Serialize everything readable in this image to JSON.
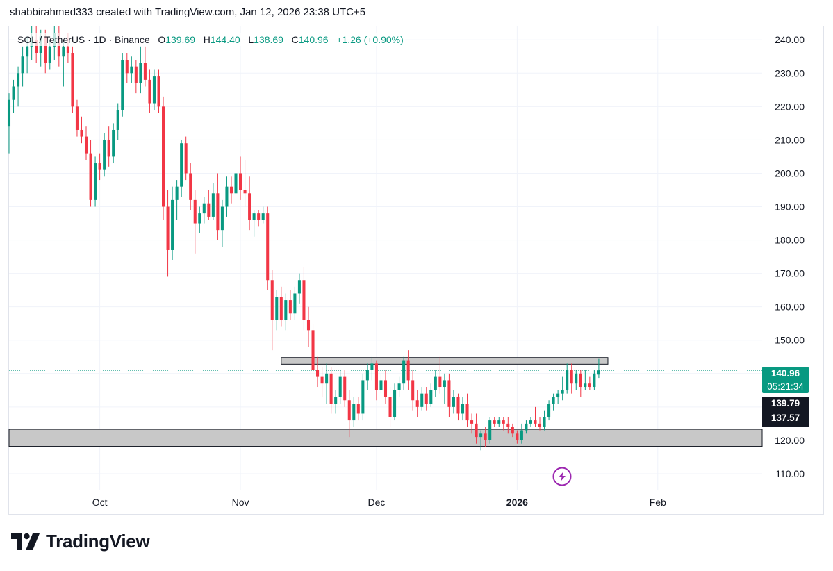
{
  "header": {
    "credit": "shabbirahmed333 created with TradingView.com, Jan 12, 2026 23:38 UTC+5"
  },
  "ticker": {
    "symbol": "SOL / TetherUS · 1D · Binance",
    "o_label": "O",
    "o_value": "139.69",
    "h_label": "H",
    "h_value": "144.40",
    "l_label": "L",
    "l_value": "138.69",
    "c_label": "C",
    "c_value": "140.96",
    "change": "+1.26 (+0.90%)"
  },
  "price_tags": {
    "last_price": "140.96",
    "countdown": "05:21:34",
    "level_1": "139.79",
    "level_2": "137.57"
  },
  "footer": {
    "brand": "TradingView",
    "logo_icon": "tradingview-logo-icon"
  },
  "colors": {
    "up": "#089981",
    "down": "#f23645",
    "zone_fill": "#c8c8c8",
    "zone_border": "#131722",
    "grid": "#f0f3fa",
    "accent_purple": "#9c27b0"
  },
  "chart_data": {
    "type": "candlestick",
    "title": "SOL / TetherUS · 1D · Binance",
    "x_ticks": [
      "Oct",
      "Nov",
      "Dec",
      "2026",
      "Feb"
    ],
    "y_ticks": [
      "110.00",
      "120.00",
      "130.00",
      "140.00",
      "150.00",
      "160.00",
      "170.00",
      "180.00",
      "190.00",
      "200.00",
      "210.00",
      "220.00",
      "230.00",
      "240.00"
    ],
    "ylim": [
      105,
      244
    ],
    "xlim": [
      "2025-09-11",
      "2026-02-24"
    ],
    "grid": true,
    "zones": [
      {
        "from": 142.8,
        "to": 144.8,
        "x_start": "2025-11-10",
        "x_end": "2026-01-21"
      },
      {
        "from": 118.2,
        "to": 123.3,
        "x_start": "2025-09-11",
        "x_end": "2026-02-24"
      }
    ],
    "last_price_line": 140.96,
    "candles": [
      {
        "date": "2025-09-11",
        "o": 214,
        "h": 224,
        "l": 206,
        "c": 222
      },
      {
        "date": "2025-09-12",
        "o": 222,
        "h": 228,
        "l": 218,
        "c": 226
      },
      {
        "date": "2025-09-13",
        "o": 226,
        "h": 232,
        "l": 220,
        "c": 230
      },
      {
        "date": "2025-09-14",
        "o": 230,
        "h": 238,
        "l": 226,
        "c": 235
      },
      {
        "date": "2025-09-15",
        "o": 235,
        "h": 241,
        "l": 230,
        "c": 238
      },
      {
        "date": "2025-09-16",
        "o": 238,
        "h": 244,
        "l": 234,
        "c": 240
      },
      {
        "date": "2025-09-17",
        "o": 240,
        "h": 244,
        "l": 233,
        "c": 236
      },
      {
        "date": "2025-09-18",
        "o": 236,
        "h": 243,
        "l": 232,
        "c": 241
      },
      {
        "date": "2025-09-19",
        "o": 241,
        "h": 243,
        "l": 230,
        "c": 233
      },
      {
        "date": "2025-09-20",
        "o": 233,
        "h": 240,
        "l": 231,
        "c": 238
      },
      {
        "date": "2025-09-21",
        "o": 238,
        "h": 244,
        "l": 234,
        "c": 242
      },
      {
        "date": "2025-09-22",
        "o": 242,
        "h": 244,
        "l": 232,
        "c": 235
      },
      {
        "date": "2025-09-23",
        "o": 235,
        "h": 240,
        "l": 226,
        "c": 238
      },
      {
        "date": "2025-09-24",
        "o": 238,
        "h": 242,
        "l": 233,
        "c": 236
      },
      {
        "date": "2025-09-25",
        "o": 236,
        "h": 238,
        "l": 218,
        "c": 220
      },
      {
        "date": "2025-09-26",
        "o": 220,
        "h": 222,
        "l": 211,
        "c": 213
      },
      {
        "date": "2025-09-27",
        "o": 213,
        "h": 217,
        "l": 209,
        "c": 211
      },
      {
        "date": "2025-09-28",
        "o": 211,
        "h": 214,
        "l": 204,
        "c": 206
      },
      {
        "date": "2025-09-29",
        "o": 206,
        "h": 210,
        "l": 190,
        "c": 192
      },
      {
        "date": "2025-09-30",
        "o": 192,
        "h": 205,
        "l": 190,
        "c": 203
      },
      {
        "date": "2025-10-01",
        "o": 203,
        "h": 206,
        "l": 198,
        "c": 201
      },
      {
        "date": "2025-10-02",
        "o": 201,
        "h": 212,
        "l": 199,
        "c": 210
      },
      {
        "date": "2025-10-03",
        "o": 210,
        "h": 214,
        "l": 202,
        "c": 205
      },
      {
        "date": "2025-10-04",
        "o": 205,
        "h": 215,
        "l": 203,
        "c": 213
      },
      {
        "date": "2025-10-05",
        "o": 213,
        "h": 221,
        "l": 210,
        "c": 219
      },
      {
        "date": "2025-10-06",
        "o": 219,
        "h": 236,
        "l": 217,
        "c": 234
      },
      {
        "date": "2025-10-07",
        "o": 234,
        "h": 236,
        "l": 227,
        "c": 230
      },
      {
        "date": "2025-10-08",
        "o": 230,
        "h": 235,
        "l": 227,
        "c": 232
      },
      {
        "date": "2025-10-09",
        "o": 232,
        "h": 234,
        "l": 224,
        "c": 227
      },
      {
        "date": "2025-10-10",
        "o": 227,
        "h": 238,
        "l": 224,
        "c": 233
      },
      {
        "date": "2025-10-11",
        "o": 233,
        "h": 238,
        "l": 226,
        "c": 228
      },
      {
        "date": "2025-10-12",
        "o": 228,
        "h": 231,
        "l": 218,
        "c": 221
      },
      {
        "date": "2025-10-13",
        "o": 221,
        "h": 231,
        "l": 219,
        "c": 229
      },
      {
        "date": "2025-10-14",
        "o": 229,
        "h": 231,
        "l": 218,
        "c": 220
      },
      {
        "date": "2025-10-15",
        "o": 220,
        "h": 223,
        "l": 186,
        "c": 190
      },
      {
        "date": "2025-10-16",
        "o": 190,
        "h": 195,
        "l": 169,
        "c": 177
      },
      {
        "date": "2025-10-17",
        "o": 177,
        "h": 196,
        "l": 174,
        "c": 192
      },
      {
        "date": "2025-10-18",
        "o": 192,
        "h": 198,
        "l": 186,
        "c": 196
      },
      {
        "date": "2025-10-19",
        "o": 196,
        "h": 210,
        "l": 193,
        "c": 209
      },
      {
        "date": "2025-10-20",
        "o": 209,
        "h": 211,
        "l": 198,
        "c": 200
      },
      {
        "date": "2025-10-21",
        "o": 200,
        "h": 203,
        "l": 189,
        "c": 192
      },
      {
        "date": "2025-10-22",
        "o": 192,
        "h": 195,
        "l": 176,
        "c": 185
      },
      {
        "date": "2025-10-23",
        "o": 185,
        "h": 190,
        "l": 182,
        "c": 188
      },
      {
        "date": "2025-10-24",
        "o": 188,
        "h": 193,
        "l": 185,
        "c": 191
      },
      {
        "date": "2025-10-25",
        "o": 191,
        "h": 195,
        "l": 186,
        "c": 187
      },
      {
        "date": "2025-10-26",
        "o": 187,
        "h": 197,
        "l": 186,
        "c": 194
      },
      {
        "date": "2025-10-27",
        "o": 194,
        "h": 200,
        "l": 180,
        "c": 183
      },
      {
        "date": "2025-10-28",
        "o": 183,
        "h": 192,
        "l": 178,
        "c": 190
      },
      {
        "date": "2025-10-29",
        "o": 190,
        "h": 199,
        "l": 187,
        "c": 196
      },
      {
        "date": "2025-10-30",
        "o": 196,
        "h": 199,
        "l": 191,
        "c": 194
      },
      {
        "date": "2025-10-31",
        "o": 194,
        "h": 201,
        "l": 192,
        "c": 200
      },
      {
        "date": "2025-11-01",
        "o": 200,
        "h": 205,
        "l": 192,
        "c": 195
      },
      {
        "date": "2025-11-02",
        "o": 195,
        "h": 204,
        "l": 190,
        "c": 194
      },
      {
        "date": "2025-11-03",
        "o": 194,
        "h": 199,
        "l": 183,
        "c": 186
      },
      {
        "date": "2025-11-04",
        "o": 186,
        "h": 189,
        "l": 181,
        "c": 188
      },
      {
        "date": "2025-11-05",
        "o": 188,
        "h": 189,
        "l": 184,
        "c": 186
      },
      {
        "date": "2025-11-06",
        "o": 186,
        "h": 190,
        "l": 185,
        "c": 188
      },
      {
        "date": "2025-11-07",
        "o": 188,
        "h": 190,
        "l": 165,
        "c": 168
      },
      {
        "date": "2025-11-08",
        "o": 168,
        "h": 171,
        "l": 147,
        "c": 156
      },
      {
        "date": "2025-11-09",
        "o": 156,
        "h": 165,
        "l": 153,
        "c": 163
      },
      {
        "date": "2025-11-10",
        "o": 163,
        "h": 166,
        "l": 154,
        "c": 156
      },
      {
        "date": "2025-11-11",
        "o": 156,
        "h": 164,
        "l": 153,
        "c": 162
      },
      {
        "date": "2025-11-12",
        "o": 162,
        "h": 165,
        "l": 156,
        "c": 158
      },
      {
        "date": "2025-11-13",
        "o": 158,
        "h": 166,
        "l": 156,
        "c": 164
      },
      {
        "date": "2025-11-14",
        "o": 164,
        "h": 170,
        "l": 161,
        "c": 168
      },
      {
        "date": "2025-11-15",
        "o": 168,
        "h": 172,
        "l": 153,
        "c": 156
      },
      {
        "date": "2025-11-16",
        "o": 156,
        "h": 160,
        "l": 148,
        "c": 153
      },
      {
        "date": "2025-11-17",
        "o": 153,
        "h": 155,
        "l": 138,
        "c": 141
      },
      {
        "date": "2025-11-18",
        "o": 141,
        "h": 145,
        "l": 136,
        "c": 139
      },
      {
        "date": "2025-11-19",
        "o": 139,
        "h": 142,
        "l": 133,
        "c": 137
      },
      {
        "date": "2025-11-20",
        "o": 137,
        "h": 143,
        "l": 131,
        "c": 140
      },
      {
        "date": "2025-11-21",
        "o": 140,
        "h": 142,
        "l": 128,
        "c": 131
      },
      {
        "date": "2025-11-22",
        "o": 131,
        "h": 135,
        "l": 128,
        "c": 133
      },
      {
        "date": "2025-11-23",
        "o": 133,
        "h": 141,
        "l": 131,
        "c": 139
      },
      {
        "date": "2025-11-24",
        "o": 139,
        "h": 141,
        "l": 130,
        "c": 132
      },
      {
        "date": "2025-11-25",
        "o": 132,
        "h": 135,
        "l": 121,
        "c": 126
      },
      {
        "date": "2025-11-26",
        "o": 126,
        "h": 133,
        "l": 124,
        "c": 131
      },
      {
        "date": "2025-11-27",
        "o": 131,
        "h": 133,
        "l": 126,
        "c": 128
      },
      {
        "date": "2025-11-28",
        "o": 128,
        "h": 140,
        "l": 126,
        "c": 138
      },
      {
        "date": "2025-11-29",
        "o": 138,
        "h": 143,
        "l": 135,
        "c": 141
      },
      {
        "date": "2025-11-30",
        "o": 141,
        "h": 145,
        "l": 138,
        "c": 143
      },
      {
        "date": "2025-12-01",
        "o": 143,
        "h": 144,
        "l": 132,
        "c": 135
      },
      {
        "date": "2025-12-02",
        "o": 135,
        "h": 140,
        "l": 134,
        "c": 138
      },
      {
        "date": "2025-12-03",
        "o": 138,
        "h": 141,
        "l": 131,
        "c": 133
      },
      {
        "date": "2025-12-04",
        "o": 133,
        "h": 136,
        "l": 124,
        "c": 127
      },
      {
        "date": "2025-12-05",
        "o": 127,
        "h": 137,
        "l": 126,
        "c": 135
      },
      {
        "date": "2025-12-06",
        "o": 135,
        "h": 139,
        "l": 133,
        "c": 137
      },
      {
        "date": "2025-12-07",
        "o": 137,
        "h": 145,
        "l": 135,
        "c": 144
      },
      {
        "date": "2025-12-08",
        "o": 144,
        "h": 147,
        "l": 135,
        "c": 138
      },
      {
        "date": "2025-12-09",
        "o": 138,
        "h": 141,
        "l": 129,
        "c": 132
      },
      {
        "date": "2025-12-10",
        "o": 132,
        "h": 135,
        "l": 127,
        "c": 130
      },
      {
        "date": "2025-12-11",
        "o": 130,
        "h": 136,
        "l": 129,
        "c": 134
      },
      {
        "date": "2025-12-12",
        "o": 134,
        "h": 136,
        "l": 129,
        "c": 131
      },
      {
        "date": "2025-12-13",
        "o": 131,
        "h": 137,
        "l": 130,
        "c": 135
      },
      {
        "date": "2025-12-14",
        "o": 135,
        "h": 141,
        "l": 133,
        "c": 139
      },
      {
        "date": "2025-12-15",
        "o": 139,
        "h": 145,
        "l": 134,
        "c": 136
      },
      {
        "date": "2025-12-16",
        "o": 136,
        "h": 140,
        "l": 131,
        "c": 138
      },
      {
        "date": "2025-12-17",
        "o": 138,
        "h": 140,
        "l": 127,
        "c": 130
      },
      {
        "date": "2025-12-18",
        "o": 130,
        "h": 135,
        "l": 128,
        "c": 133
      },
      {
        "date": "2025-12-19",
        "o": 133,
        "h": 134,
        "l": 126,
        "c": 128
      },
      {
        "date": "2025-12-20",
        "o": 128,
        "h": 133,
        "l": 126,
        "c": 131
      },
      {
        "date": "2025-12-21",
        "o": 131,
        "h": 134,
        "l": 124,
        "c": 126
      },
      {
        "date": "2025-12-22",
        "o": 126,
        "h": 128,
        "l": 122,
        "c": 125
      },
      {
        "date": "2025-12-23",
        "o": 125,
        "h": 128,
        "l": 119,
        "c": 121
      },
      {
        "date": "2025-12-24",
        "o": 121,
        "h": 123,
        "l": 117,
        "c": 122
      },
      {
        "date": "2025-12-25",
        "o": 122,
        "h": 124,
        "l": 118,
        "c": 120
      },
      {
        "date": "2025-12-26",
        "o": 120,
        "h": 127,
        "l": 119,
        "c": 126
      },
      {
        "date": "2025-12-27",
        "o": 126,
        "h": 127,
        "l": 124,
        "c": 125
      },
      {
        "date": "2025-12-28",
        "o": 125,
        "h": 127,
        "l": 124,
        "c": 126
      },
      {
        "date": "2025-12-29",
        "o": 126,
        "h": 127,
        "l": 123,
        "c": 125
      },
      {
        "date": "2025-12-30",
        "o": 125,
        "h": 127,
        "l": 122,
        "c": 124
      },
      {
        "date": "2025-12-31",
        "o": 124,
        "h": 125,
        "l": 121,
        "c": 122
      },
      {
        "date": "2026-01-01",
        "o": 122,
        "h": 123,
        "l": 119,
        "c": 120
      },
      {
        "date": "2026-01-02",
        "o": 120,
        "h": 125,
        "l": 119,
        "c": 123
      },
      {
        "date": "2026-01-03",
        "o": 123,
        "h": 126,
        "l": 122,
        "c": 125
      },
      {
        "date": "2026-01-04",
        "o": 125,
        "h": 127,
        "l": 124,
        "c": 126
      },
      {
        "date": "2026-01-05",
        "o": 126,
        "h": 130,
        "l": 124,
        "c": 125
      },
      {
        "date": "2026-01-06",
        "o": 125,
        "h": 127,
        "l": 123,
        "c": 124
      },
      {
        "date": "2026-01-07",
        "o": 124,
        "h": 129,
        "l": 123,
        "c": 127
      },
      {
        "date": "2026-01-08",
        "o": 127,
        "h": 132,
        "l": 126,
        "c": 131
      },
      {
        "date": "2026-01-09",
        "o": 131,
        "h": 134,
        "l": 129,
        "c": 133
      },
      {
        "date": "2026-01-10",
        "o": 133,
        "h": 135,
        "l": 131,
        "c": 134
      },
      {
        "date": "2026-01-11",
        "o": 134,
        "h": 139,
        "l": 132,
        "c": 135
      },
      {
        "date": "2026-01-12",
        "o": 135,
        "h": 143,
        "l": 134,
        "c": 141
      },
      {
        "date": "2026-01-13",
        "o": 141,
        "h": 143,
        "l": 134,
        "c": 137
      },
      {
        "date": "2026-01-14",
        "o": 137,
        "h": 141,
        "l": 135,
        "c": 140
      },
      {
        "date": "2026-01-15",
        "o": 140,
        "h": 141,
        "l": 133,
        "c": 136
      },
      {
        "date": "2026-01-16",
        "o": 136,
        "h": 141,
        "l": 135,
        "c": 137
      },
      {
        "date": "2026-01-17",
        "o": 137,
        "h": 139,
        "l": 135,
        "c": 136
      },
      {
        "date": "2026-01-18",
        "o": 136,
        "h": 141,
        "l": 135,
        "c": 140
      },
      {
        "date": "2026-01-19",
        "o": 139.69,
        "h": 144.4,
        "l": 138.69,
        "c": 140.96
      }
    ]
  }
}
